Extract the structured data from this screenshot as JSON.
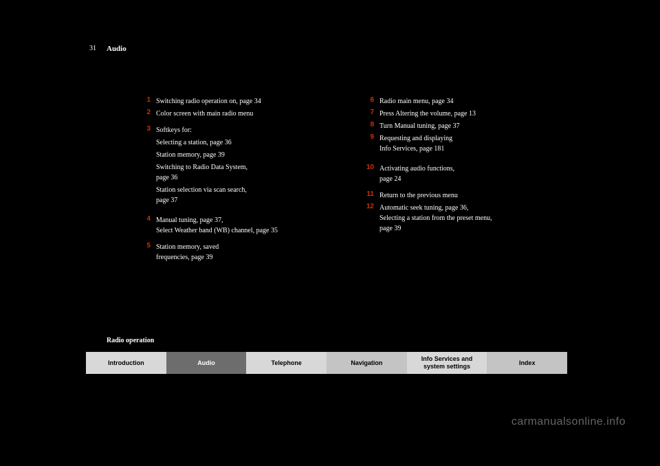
{
  "page_number": "31",
  "section_title": "Audio",
  "footer_label": "Radio operation",
  "watermark": "carmanualsonline.info",
  "col1": [
    {
      "n": "1",
      "text": "Switching radio operation on, page 34"
    },
    {
      "n": "2",
      "text": "Color screen with main radio menu"
    },
    {
      "n": "3",
      "text": "Softkeys for:"
    },
    {
      "n": "",
      "text": "Selecting a station, page 36"
    },
    {
      "n": "",
      "text": "Station memory, page 39"
    },
    {
      "n": "",
      "text": "Switching to Radio Data System,<br>page 36"
    },
    {
      "n": "",
      "text": "Station selection via scan search,<br>page 37"
    },
    {
      "n": "4",
      "text": "Manual tuning, page 37,<br>Select Weather band (WB) channel, page 35"
    },
    {
      "n": "5",
      "text": "Station memory, saved<br>frequencies, page 39"
    }
  ],
  "col2": [
    {
      "n": "6",
      "text": "Radio main menu, page 34"
    },
    {
      "n": "7",
      "text": "Press\nAltering the volume, page 13"
    },
    {
      "n": "8",
      "text": "Turn\nManual tuning, page 37"
    },
    {
      "n": "9",
      "text": "Requesting and displaying<br>Info Services, page 181"
    },
    {
      "n": "10",
      "text": "Activating audio functions,<br>page 24"
    },
    {
      "n": "11",
      "text": "Return to the previous menu"
    },
    {
      "n": "12",
      "text": "Automatic seek tuning, page 36,<br>Selecting a station from the preset menu,<br>page 39"
    }
  ],
  "tabs": [
    {
      "label": "Introduction",
      "cls": "tab-light"
    },
    {
      "label": "Audio",
      "cls": "tab-dark"
    },
    {
      "label": "Telephone",
      "cls": "tab-light"
    },
    {
      "label": "Navigation",
      "cls": "tab-mid"
    },
    {
      "label": "Info Services and<br>system settings",
      "cls": "tab-light"
    },
    {
      "label": "Index",
      "cls": "tab-mid"
    }
  ]
}
